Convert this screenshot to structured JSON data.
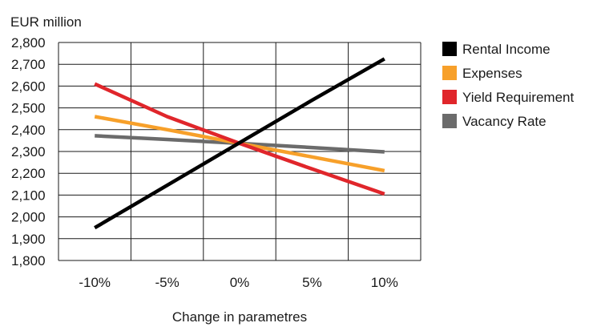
{
  "chart_data": {
    "type": "line",
    "ylabel": "EUR million",
    "xlabel": "Change in parametres",
    "categories": [
      "-10%",
      "-5%",
      "0%",
      "5%",
      "10%"
    ],
    "ylim": [
      1800,
      2800
    ],
    "yticks": [
      1800,
      1900,
      2000,
      2100,
      2200,
      2300,
      2400,
      2500,
      2600,
      2700,
      2800
    ],
    "ytick_labels": [
      "1,800",
      "1,900",
      "2,000",
      "2,100",
      "2,200",
      "2,300",
      "2,400",
      "2,500",
      "2,600",
      "2,700",
      "2,800"
    ],
    "grid": "horizontal and vertical",
    "legend_position": "right",
    "series": [
      {
        "name": "Rental Income",
        "color": "#000000",
        "values": [
          1950,
          2145,
          2340,
          2535,
          2725
        ]
      },
      {
        "name": "Expenses",
        "color": "#f7a02a",
        "values": [
          2460,
          2400,
          2337,
          2275,
          2212
        ]
      },
      {
        "name": "Yield Requirement",
        "color": "#e0262b",
        "values": [
          2610,
          2460,
          2337,
          2220,
          2105
        ]
      },
      {
        "name": "Vacancy Rate",
        "color": "#6b6b6b",
        "values": [
          2372,
          2355,
          2337,
          2318,
          2298
        ]
      }
    ]
  }
}
